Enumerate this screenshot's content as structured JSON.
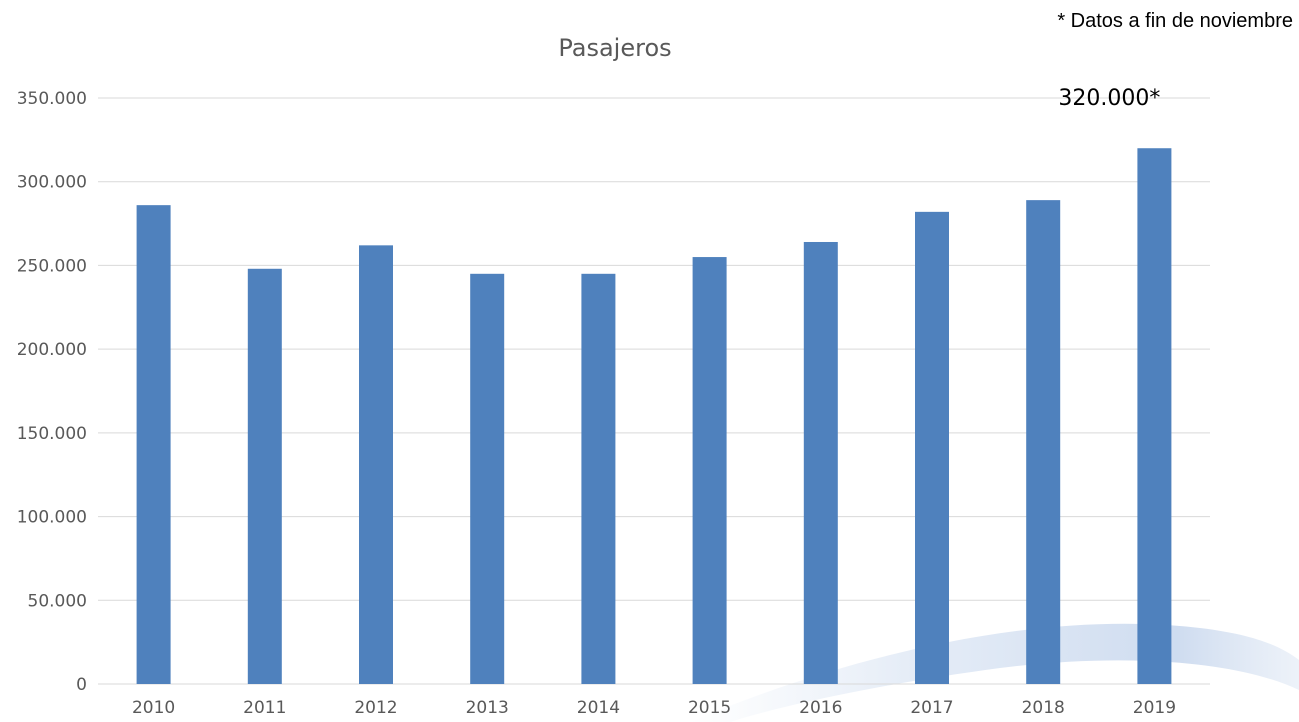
{
  "footnote": "* Datos a fin de noviembre",
  "chart_data": {
    "type": "bar",
    "title": "Pasajeros",
    "xlabel": "",
    "ylabel": "",
    "categories": [
      "2010",
      "2011",
      "2012",
      "2013",
      "2014",
      "2015",
      "2016",
      "2017",
      "2018",
      "2019"
    ],
    "values": [
      286000,
      248000,
      262000,
      245000,
      245000,
      255000,
      264000,
      282000,
      289000,
      320000
    ],
    "ylim": [
      0,
      350000
    ],
    "yticks": [
      0,
      50000,
      100000,
      150000,
      200000,
      250000,
      300000,
      350000
    ],
    "ytick_labels": [
      "0",
      "50.000",
      "100.000",
      "150.000",
      "200.000",
      "250.000",
      "300.000",
      "350.000"
    ],
    "data_labels": [
      {
        "category": "2019",
        "text": "320.000*"
      }
    ],
    "grid": true,
    "legend": "none",
    "bar_color": "#4f81bd",
    "grid_color": "#d9d9d9",
    "text_color": "#595959"
  }
}
